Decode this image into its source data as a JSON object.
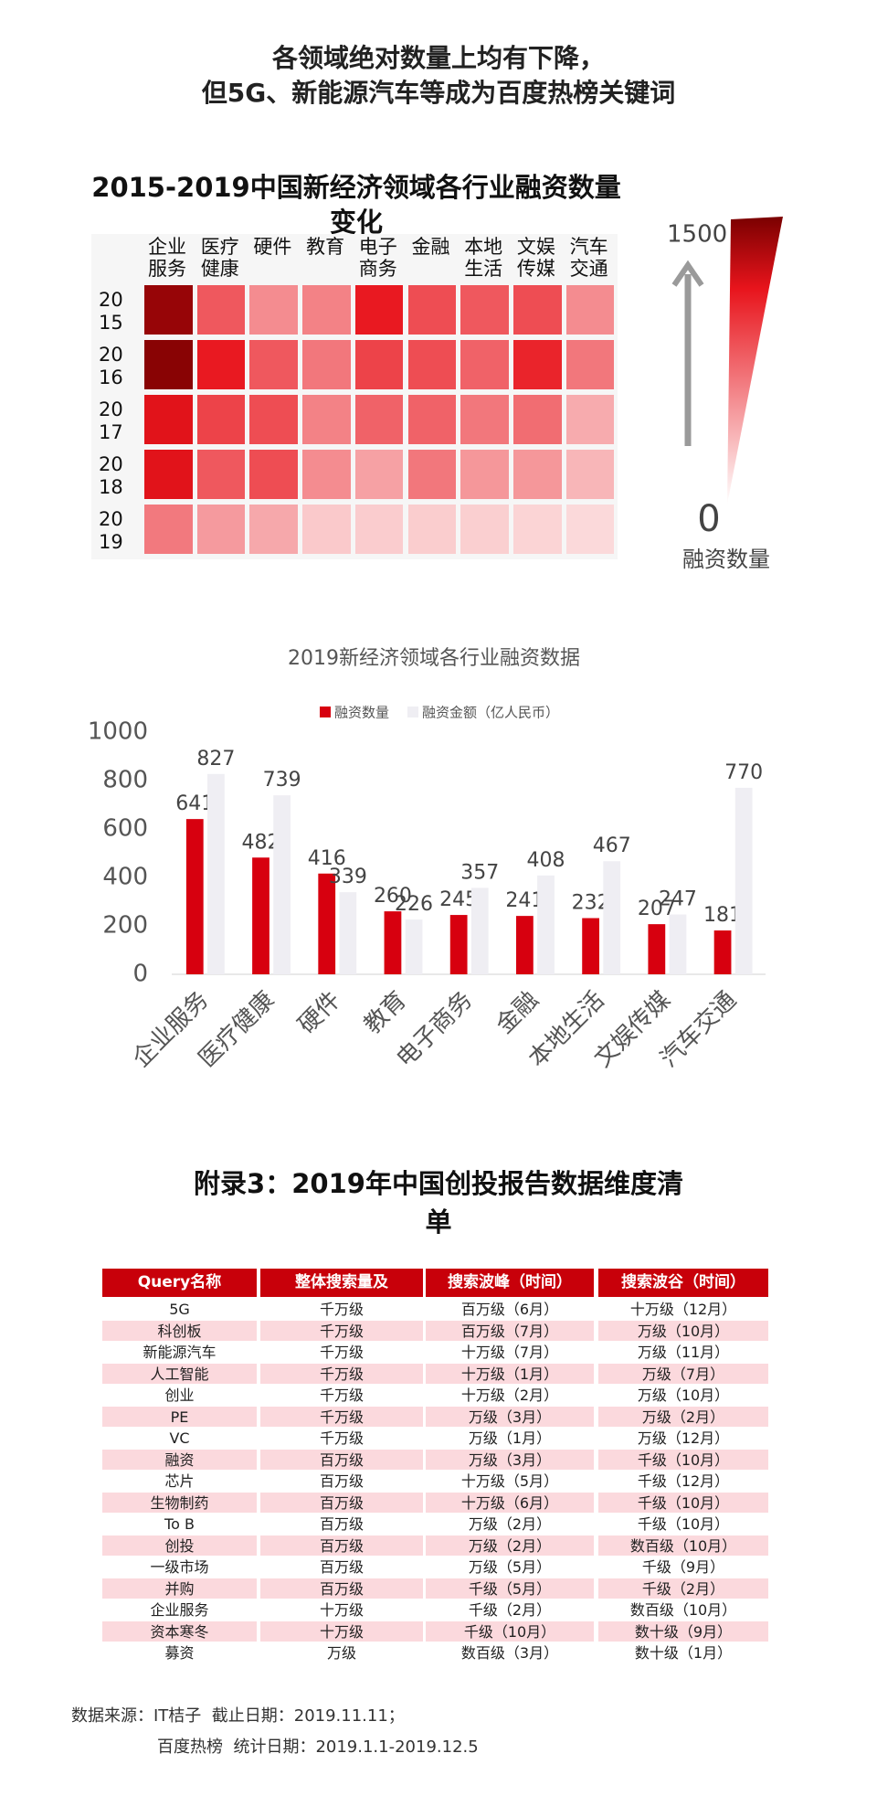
{
  "header": {
    "title": [
      "各领域绝对数量上均有下降，",
      "但5G、新能源汽车等成为百度热榜关键词"
    ]
  },
  "chart_data": [
    {
      "type": "heatmap",
      "title": [
        "2015-2019中国新经济领域各行业融资数量",
        "变化"
      ],
      "columns": [
        "企业服务",
        "医疗健康",
        "硬件",
        "教育",
        "电子商务",
        "金融",
        "本地生活",
        "文娱传媒",
        "汽车交通"
      ],
      "rows": [
        "2015",
        "2016",
        "2017",
        "2018",
        "2019"
      ],
      "values": [
        [
          1400,
          800,
          550,
          600,
          1100,
          850,
          800,
          850,
          550
        ],
        [
          1450,
          1100,
          800,
          650,
          900,
          850,
          750,
          1050,
          650
        ],
        [
          1150,
          900,
          850,
          600,
          750,
          750,
          650,
          700,
          400
        ],
        [
          1150,
          800,
          850,
          550,
          450,
          650,
          500,
          500,
          350
        ],
        [
          641,
          482,
          416,
          260,
          245,
          241,
          232,
          207,
          181
        ]
      ],
      "colorlim": [
        0,
        1500
      ],
      "colors": [
        "#ffffff",
        "#e8141c",
        "#7a0000"
      ],
      "colorbar_label": "融资数量"
    },
    {
      "type": "bar",
      "title": "2019新经济领域各行业融资数据",
      "categories": [
        "企业服务",
        "医疗健康",
        "硬件",
        "教育",
        "电子商务",
        "金融",
        "本地生活",
        "文娱传媒",
        "汽车交通"
      ],
      "series": [
        {
          "name": "融资数量",
          "color": "#d7000f",
          "values": [
            641,
            482,
            416,
            260,
            245,
            241,
            232,
            207,
            181
          ]
        },
        {
          "name": "融资金额（亿人民币）",
          "color": "#efeef3",
          "values": [
            827,
            739,
            339,
            226,
            357,
            408,
            467,
            247,
            770
          ]
        }
      ],
      "ylim": [
        0,
        1000
      ],
      "yticks": [
        0,
        200,
        400,
        600,
        800,
        1000
      ]
    }
  ],
  "table": {
    "title": "附录3：2019年中国创投报告数据维度清单",
    "columns": [
      "Query名称",
      "整体搜索量及",
      "搜索波峰（时间）",
      "搜索波谷（时间）"
    ],
    "rows": [
      [
        "5G",
        "千万级",
        "百万级（6月）",
        "十万级（12月）"
      ],
      [
        "科创板",
        "千万级",
        "百万级（7月）",
        "万级（10月）"
      ],
      [
        "新能源汽车",
        "千万级",
        "十万级（7月）",
        "万级（11月）"
      ],
      [
        "人工智能",
        "千万级",
        "十万级（1月）",
        "万级（7月）"
      ],
      [
        "创业",
        "千万级",
        "十万级（2月）",
        "万级（10月）"
      ],
      [
        "PE",
        "千万级",
        "万级（3月）",
        "万级（2月）"
      ],
      [
        "VC",
        "千万级",
        "万级（1月）",
        "万级（12月）"
      ],
      [
        "融资",
        "百万级",
        "万级（3月）",
        "千级（10月）"
      ],
      [
        "芯片",
        "百万级",
        "十万级（5月）",
        "千级（12月）"
      ],
      [
        "生物制药",
        "百万级",
        "十万级（6月）",
        "千级（10月）"
      ],
      [
        "To B",
        "百万级",
        "万级（2月）",
        "千级（10月）"
      ],
      [
        "创投",
        "百万级",
        "万级（2月）",
        "数百级（10月）"
      ],
      [
        "一级市场",
        "百万级",
        "万级（5月）",
        "千级（9月）"
      ],
      [
        "并购",
        "百万级",
        "千级（5月）",
        "千级（2月）"
      ],
      [
        "企业服务",
        "十万级",
        "千级（2月）",
        "数百级（10月）"
      ],
      [
        "资本寒冬",
        "十万级",
        "千级（10月）",
        "数十级（9月）"
      ],
      [
        "募资",
        "万级",
        "数百级（3月）",
        "数十级（1月）"
      ]
    ]
  },
  "footer": [
    "数据来源：IT桔子  截止日期：2019.11.11；",
    "百度热榜  统计日期：2019.1.1-2019.12.5"
  ]
}
